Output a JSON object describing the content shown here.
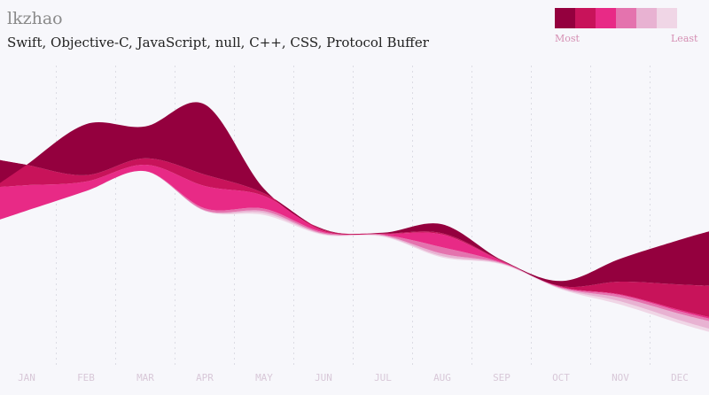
{
  "title": "lkzhao",
  "subtitle": "Swift, Objective-C, JavaScript, null, C++, CSS, Protocol Buffer",
  "legend": {
    "most_label": "Most",
    "least_label": "Least",
    "colors": [
      "#94003e",
      "#c8135a",
      "#e82a86",
      "#e473ae",
      "#e8b2d2",
      "#f0d6e6"
    ]
  },
  "chart_data": {
    "type": "area",
    "stacked": true,
    "style": "streamgraph",
    "grid": "dotted-vertical",
    "categories": [
      "JAN",
      "FEB",
      "MAR",
      "APR",
      "MAY",
      "JUN",
      "JUL",
      "AUG",
      "SEP",
      "OCT",
      "NOV",
      "DEC"
    ],
    "series": [
      {
        "color": "#f0d6e6",
        "values": [
          0,
          0,
          0,
          0,
          3,
          1,
          1,
          2,
          1,
          1,
          5,
          5
        ]
      },
      {
        "color": "#e8b2d2",
        "values": [
          0,
          0,
          0,
          1,
          3,
          1,
          1,
          4,
          1,
          1,
          6,
          10
        ]
      },
      {
        "color": "#e473ae",
        "values": [
          0,
          0,
          0,
          3,
          4,
          2,
          1,
          10,
          1,
          1,
          4,
          4
        ]
      },
      {
        "color": "#e82a86",
        "values": [
          40,
          15,
          10,
          35,
          20,
          2,
          1,
          20,
          2,
          1,
          1,
          2
        ]
      },
      {
        "color": "#c8135a",
        "values": [
          32,
          10,
          10,
          18,
          4,
          2,
          1,
          2,
          1,
          1,
          20,
          40
        ]
      },
      {
        "color": "#94003e",
        "values": [
          0,
          80,
          50,
          110,
          7,
          1,
          1,
          14,
          1,
          8,
          36,
          70
        ]
      }
    ]
  }
}
